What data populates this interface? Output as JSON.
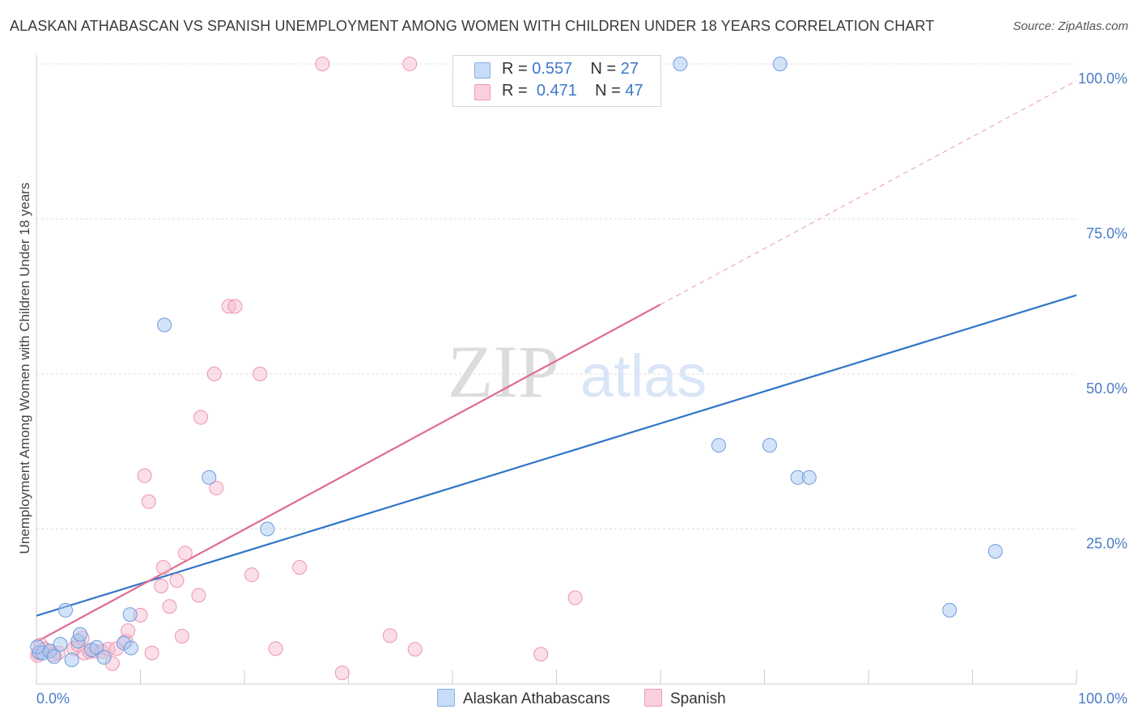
{
  "title": "ALASKAN ATHABASCAN VS SPANISH UNEMPLOYMENT AMONG WOMEN WITH CHILDREN UNDER 18 YEARS CORRELATION CHART",
  "source": "Source: ZipAtlas.com",
  "watermark": {
    "zip": "ZIP",
    "atlas": "atlas"
  },
  "legend": {
    "r_label": "R =",
    "n_label": "N =",
    "rows": [
      {
        "r": "0.557",
        "n": "27",
        "color": "#a9c8f0"
      },
      {
        "r": "0.471",
        "n": "47",
        "color": "#f7b9cb"
      }
    ]
  },
  "colors": {
    "blue_line": "#2f74c8",
    "pink_line": "#e06a93",
    "blue_fill": "#a9c8f0",
    "pink_fill": "#f7b9cb"
  },
  "chart_data": {
    "type": "scatter",
    "title": "ALASKAN ATHABASCAN VS SPANISH UNEMPLOYMENT AMONG WOMEN WITH CHILDREN UNDER 18 YEARS CORRELATION CHART",
    "xlabel": "",
    "ylabel": "Unemployment Among Women with Children Under 18 years",
    "xlim": [
      0,
      100
    ],
    "ylim": [
      0,
      100
    ],
    "x_tick_labels": [
      "0.0%",
      "100.0%"
    ],
    "y_tick_labels": [
      "25.0%",
      "50.0%",
      "75.0%",
      "100.0%"
    ],
    "grid": true,
    "legend_position": "top-center",
    "series": [
      {
        "name": "Alaskan Athabascans",
        "r": 0.557,
        "n": 27,
        "points": [
          [
            0.3,
            5.1
          ],
          [
            0.6,
            5.0
          ],
          [
            1.3,
            5.3
          ],
          [
            1.7,
            4.4
          ],
          [
            2.3,
            6.4
          ],
          [
            2.8,
            11.9
          ],
          [
            3.4,
            3.9
          ],
          [
            4.0,
            6.9
          ],
          [
            4.2,
            8.0
          ],
          [
            5.3,
            5.5
          ],
          [
            5.8,
            5.9
          ],
          [
            6.5,
            4.3
          ],
          [
            8.4,
            6.6
          ],
          [
            9.0,
            11.2
          ],
          [
            9.1,
            5.8
          ],
          [
            12.3,
            57.9
          ],
          [
            16.6,
            33.3
          ],
          [
            22.2,
            25.0
          ],
          [
            61.9,
            100.0
          ],
          [
            71.5,
            100.0
          ],
          [
            65.6,
            38.5
          ],
          [
            70.5,
            38.5
          ],
          [
            73.2,
            33.3
          ],
          [
            74.3,
            33.3
          ],
          [
            92.2,
            21.4
          ],
          [
            87.8,
            11.9
          ],
          [
            0.1,
            6.0
          ]
        ],
        "trend": {
          "x": [
            0,
            100
          ],
          "y": [
            11.0,
            62.7
          ]
        }
      },
      {
        "name": "Spanish",
        "r": 0.471,
        "n": 47,
        "points": [
          [
            0.2,
            5.0
          ],
          [
            0.4,
            6.3
          ],
          [
            0.8,
            5.6
          ],
          [
            1.3,
            5.3
          ],
          [
            1.6,
            4.7
          ],
          [
            2.1,
            5.0
          ],
          [
            3.6,
            5.7
          ],
          [
            4.0,
            6.3
          ],
          [
            4.4,
            7.4
          ],
          [
            4.6,
            5.0
          ],
          [
            5.1,
            5.2
          ],
          [
            5.6,
            5.3
          ],
          [
            6.3,
            5.2
          ],
          [
            6.9,
            5.6
          ],
          [
            7.3,
            3.3
          ],
          [
            7.7,
            5.7
          ],
          [
            8.6,
            6.9
          ],
          [
            8.8,
            8.6
          ],
          [
            10.0,
            11.1
          ],
          [
            10.4,
            33.6
          ],
          [
            10.8,
            29.4
          ],
          [
            11.1,
            5.0
          ],
          [
            12.2,
            18.8
          ],
          [
            12.0,
            15.8
          ],
          [
            12.8,
            12.5
          ],
          [
            13.5,
            16.7
          ],
          [
            14.0,
            7.7
          ],
          [
            14.3,
            21.1
          ],
          [
            15.6,
            14.3
          ],
          [
            15.8,
            43.0
          ],
          [
            17.1,
            50.0
          ],
          [
            17.3,
            31.6
          ],
          [
            18.5,
            60.9
          ],
          [
            19.1,
            60.9
          ],
          [
            20.7,
            17.6
          ],
          [
            21.5,
            50.0
          ],
          [
            23.0,
            5.7
          ],
          [
            25.3,
            18.8
          ],
          [
            27.5,
            100.0
          ],
          [
            29.4,
            1.8
          ],
          [
            34.0,
            7.8
          ],
          [
            35.9,
            100.0
          ],
          [
            36.4,
            5.6
          ],
          [
            48.5,
            4.8
          ],
          [
            51.8,
            13.9
          ],
          [
            55.5,
            100.0
          ],
          [
            0.1,
            4.6
          ]
        ],
        "trend": {
          "x": [
            0,
            60
          ],
          "y": [
            6.8,
            61.2
          ]
        },
        "trend_extension": {
          "x": [
            60,
            100
          ],
          "y": [
            61.2,
            97.3
          ]
        }
      }
    ]
  },
  "bottom_legend": [
    {
      "label": "Alaskan Athabascans",
      "color": "#a9c8f0"
    },
    {
      "label": "Spanish",
      "color": "#f7b9cb"
    }
  ]
}
